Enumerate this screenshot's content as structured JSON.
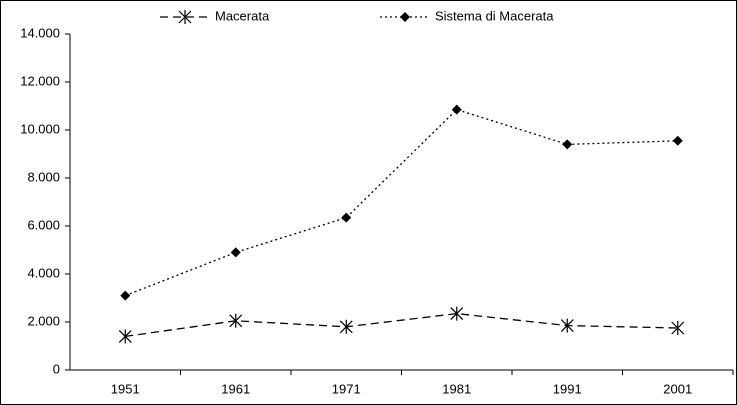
{
  "chart_data": {
    "type": "line",
    "categories": [
      "1951",
      "1961",
      "1971",
      "1981",
      "1991",
      "2001"
    ],
    "series": [
      {
        "name": "Macerata",
        "color": "#000000",
        "dash": "8,5",
        "marker": "star",
        "values": [
          1400,
          2050,
          1800,
          2350,
          1850,
          1750
        ]
      },
      {
        "name": "Sistema di Macerata",
        "color": "#000000",
        "dash": "2,3",
        "marker": "diamond",
        "values": [
          3100,
          4900,
          6350,
          10850,
          9400,
          9550
        ]
      }
    ],
    "ylim": [
      0,
      14000
    ],
    "yticks": [
      0,
      {
        "value": 2000,
        "label": "2.000"
      },
      {
        "value": 4000,
        "label": "4.000"
      },
      {
        "value": 6000,
        "label": "6.000"
      },
      {
        "value": 8000,
        "label": "8.000"
      },
      {
        "value": 10000,
        "label": "10.000"
      },
      {
        "value": 12000,
        "label": "12.000"
      },
      {
        "value": 14000,
        "label": "14.000"
      }
    ],
    "legend": "top"
  }
}
